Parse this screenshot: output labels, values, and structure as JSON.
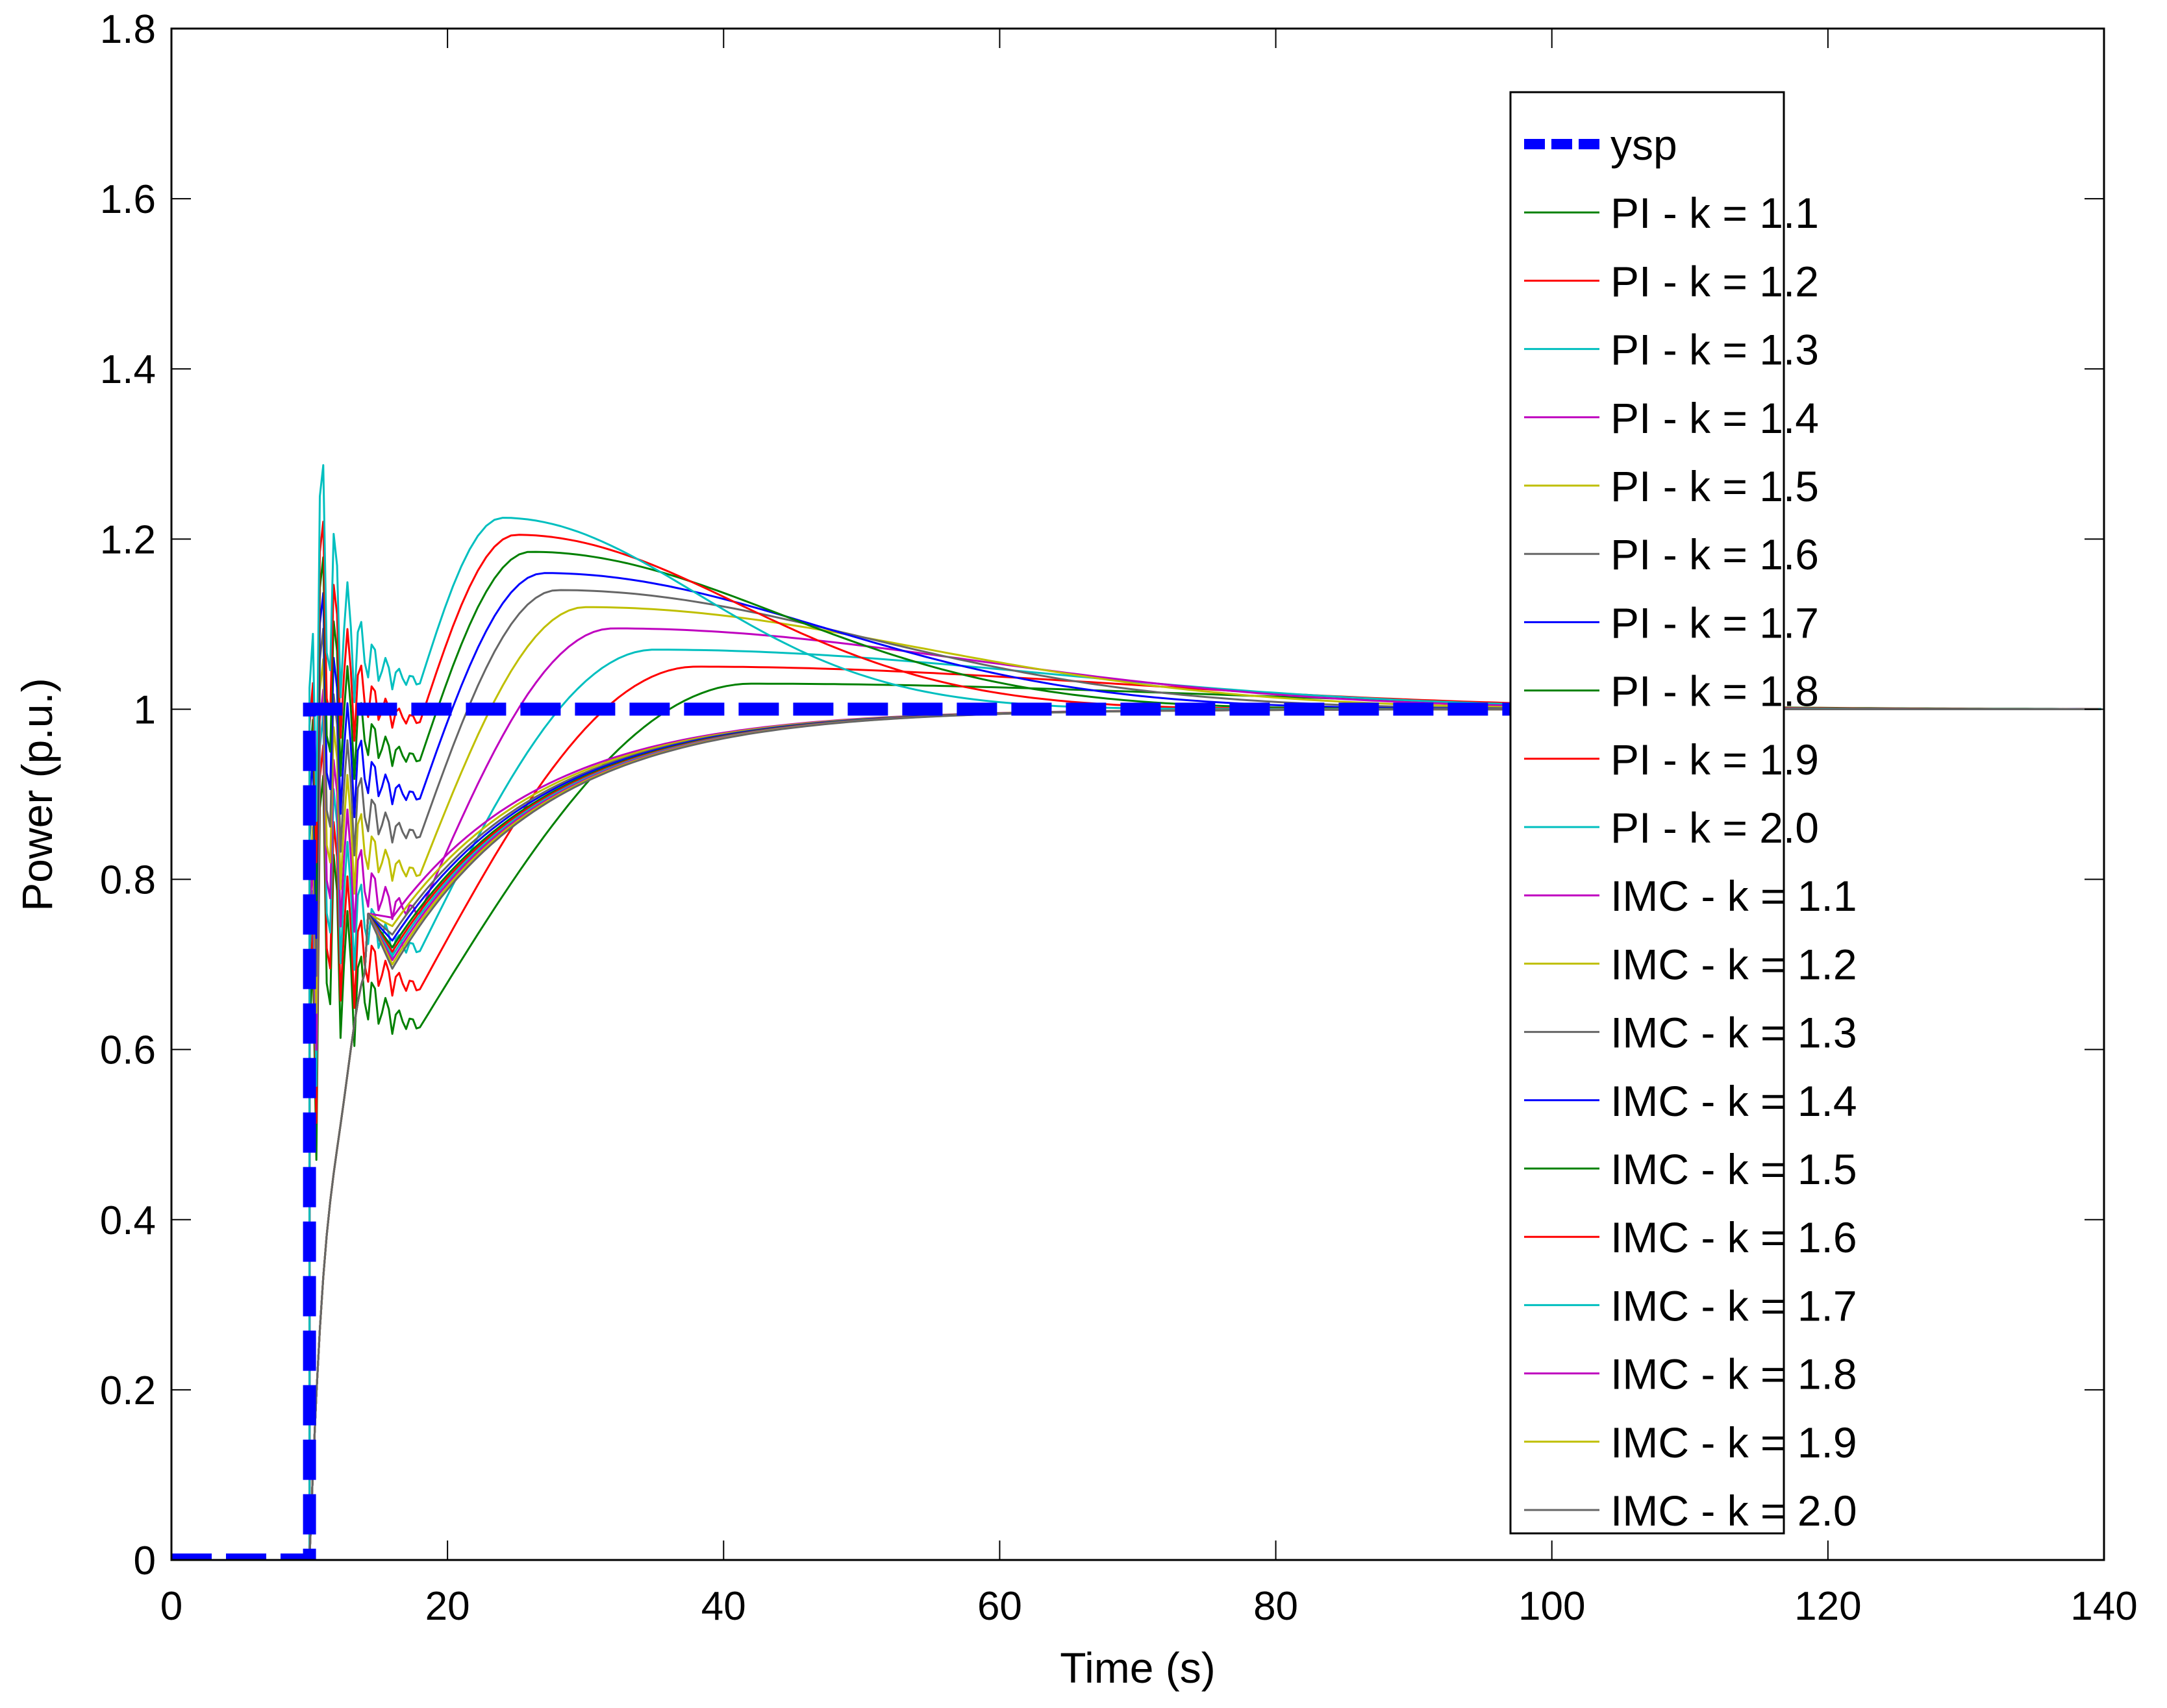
{
  "chart_data": {
    "type": "line",
    "title": "",
    "xlabel": "Time (s)",
    "ylabel": "Power (p.u.)",
    "xlim": [
      0,
      140
    ],
    "ylim": [
      0,
      1.8
    ],
    "xticks": [
      0,
      20,
      40,
      60,
      80,
      100,
      120,
      140
    ],
    "yticks": [
      0,
      0.2,
      0.4,
      0.6,
      0.8,
      1,
      1.2,
      1.4,
      1.6,
      1.8
    ],
    "xtick_labels": [
      "0",
      "20",
      "40",
      "60",
      "80",
      "100",
      "120",
      "140"
    ],
    "ytick_labels": [
      "0",
      "0.2",
      "0.4",
      "0.6",
      "0.8",
      "1",
      "1.2",
      "1.4",
      "1.6",
      "1.8"
    ],
    "grid": false,
    "legend_position": "upper right (inside)",
    "step_time": 10,
    "setpoint": {
      "name": "ysp",
      "color": "#0000ff",
      "style": "dashed",
      "x": [
        0,
        10,
        10,
        100
      ],
      "y": [
        0,
        0,
        1,
        1
      ]
    },
    "series": [
      {
        "name": "PI - k = 1.1",
        "group": "PI",
        "k": 1.1,
        "color": "#008000",
        "peak": 1.03,
        "peak_time": 42,
        "initial_spike": 1.12,
        "final": 1.0
      },
      {
        "name": "PI - k = 1.2",
        "group": "PI",
        "k": 1.2,
        "color": "#ff0000",
        "peak": 1.05,
        "peak_time": 38,
        "initial_spike": 1.15,
        "final": 1.0
      },
      {
        "name": "PI - k = 1.3",
        "group": "PI",
        "k": 1.3,
        "color": "#00bfbf",
        "peak": 1.07,
        "peak_time": 35,
        "initial_spike": 1.18,
        "final": 1.0
      },
      {
        "name": "PI - k = 1.4",
        "group": "PI",
        "k": 1.4,
        "color": "#bf00bf",
        "peak": 1.095,
        "peak_time": 32,
        "initial_spike": 1.2,
        "final": 1.0
      },
      {
        "name": "PI - k = 1.5",
        "group": "PI",
        "k": 1.5,
        "color": "#bfbf00",
        "peak": 1.12,
        "peak_time": 30,
        "initial_spike": 1.23,
        "final": 1.0
      },
      {
        "name": "PI - k = 1.6",
        "group": "PI",
        "k": 1.6,
        "color": "#666666",
        "peak": 1.14,
        "peak_time": 28,
        "initial_spike": 1.26,
        "final": 1.0
      },
      {
        "name": "PI - k = 1.7",
        "group": "PI",
        "k": 1.7,
        "color": "#0000ff",
        "peak": 1.16,
        "peak_time": 27,
        "initial_spike": 1.3,
        "final": 1.0
      },
      {
        "name": "PI - k = 1.8",
        "group": "PI",
        "k": 1.8,
        "color": "#008000",
        "peak": 1.185,
        "peak_time": 26,
        "initial_spike": 1.34,
        "final": 1.0
      },
      {
        "name": "PI - k = 1.9",
        "group": "PI",
        "k": 1.9,
        "color": "#ff0000",
        "peak": 1.205,
        "peak_time": 25,
        "initial_spike": 1.38,
        "final": 1.0
      },
      {
        "name": "PI - k = 2.0",
        "group": "PI",
        "k": 2.0,
        "color": "#00bfbf",
        "peak": 1.225,
        "peak_time": 24,
        "initial_spike": 1.46,
        "final": 1.0
      },
      {
        "name": "IMC - k = 1.1",
        "group": "IMC",
        "k": 1.1,
        "color": "#bf00bf",
        "dip_value": 0.755,
        "dip_time": 16,
        "value_at_40": 0.975,
        "final": 1.0
      },
      {
        "name": "IMC - k = 1.2",
        "group": "IMC",
        "k": 1.2,
        "color": "#bfbf00",
        "dip_value": 0.745,
        "dip_time": 16,
        "value_at_40": 0.975,
        "final": 1.0
      },
      {
        "name": "IMC - k = 1.3",
        "group": "IMC",
        "k": 1.3,
        "color": "#666666",
        "dip_value": 0.735,
        "dip_time": 16,
        "value_at_40": 0.976,
        "final": 1.0
      },
      {
        "name": "IMC - k = 1.4",
        "group": "IMC",
        "k": 1.4,
        "color": "#0000ff",
        "dip_value": 0.728,
        "dip_time": 16,
        "value_at_40": 0.976,
        "final": 1.0
      },
      {
        "name": "IMC - k = 1.5",
        "group": "IMC",
        "k": 1.5,
        "color": "#008000",
        "dip_value": 0.72,
        "dip_time": 16,
        "value_at_40": 0.977,
        "final": 1.0
      },
      {
        "name": "IMC - k = 1.6",
        "group": "IMC",
        "k": 1.6,
        "color": "#ff0000",
        "dip_value": 0.715,
        "dip_time": 16,
        "value_at_40": 0.977,
        "final": 1.0
      },
      {
        "name": "IMC - k = 1.7",
        "group": "IMC",
        "k": 1.7,
        "color": "#00bfbf",
        "dip_value": 0.71,
        "dip_time": 16,
        "value_at_40": 0.978,
        "final": 1.0
      },
      {
        "name": "IMC - k = 1.8",
        "group": "IMC",
        "k": 1.8,
        "color": "#bf00bf",
        "dip_value": 0.705,
        "dip_time": 16,
        "value_at_40": 0.978,
        "final": 1.0
      },
      {
        "name": "IMC - k = 1.9",
        "group": "IMC",
        "k": 1.9,
        "color": "#bfbf00",
        "dip_value": 0.7,
        "dip_time": 16,
        "value_at_40": 0.978,
        "final": 1.0
      },
      {
        "name": "IMC - k = 2.0",
        "group": "IMC",
        "k": 2.0,
        "color": "#666666",
        "dip_value": 0.695,
        "dip_time": 16,
        "value_at_40": 0.979,
        "final": 1.0
      }
    ]
  },
  "legend": {
    "items": [
      {
        "label": "ysp",
        "color": "#0000ff",
        "dashed": true
      },
      {
        "label": "PI - k = 1.1",
        "color": "#008000"
      },
      {
        "label": "PI - k = 1.2",
        "color": "#ff0000"
      },
      {
        "label": "PI - k = 1.3",
        "color": "#00bfbf"
      },
      {
        "label": "PI - k = 1.4",
        "color": "#bf00bf"
      },
      {
        "label": "PI - k = 1.5",
        "color": "#bfbf00"
      },
      {
        "label": "PI - k = 1.6",
        "color": "#666666"
      },
      {
        "label": "PI - k = 1.7",
        "color": "#0000ff"
      },
      {
        "label": "PI - k = 1.8",
        "color": "#008000"
      },
      {
        "label": "PI - k = 1.9",
        "color": "#ff0000"
      },
      {
        "label": "PI - k = 2.0",
        "color": "#00bfbf"
      },
      {
        "label": "IMC - k = 1.1",
        "color": "#bf00bf"
      },
      {
        "label": "IMC - k = 1.2",
        "color": "#bfbf00"
      },
      {
        "label": "IMC - k = 1.3",
        "color": "#666666"
      },
      {
        "label": "IMC - k = 1.4",
        "color": "#0000ff"
      },
      {
        "label": "IMC - k = 1.5",
        "color": "#008000"
      },
      {
        "label": "IMC - k = 1.6",
        "color": "#ff0000"
      },
      {
        "label": "IMC - k = 1.7",
        "color": "#00bfbf"
      },
      {
        "label": "IMC - k = 1.8",
        "color": "#bf00bf"
      },
      {
        "label": "IMC - k = 1.9",
        "color": "#bfbf00"
      },
      {
        "label": "IMC - k = 2.0",
        "color": "#666666"
      }
    ]
  }
}
